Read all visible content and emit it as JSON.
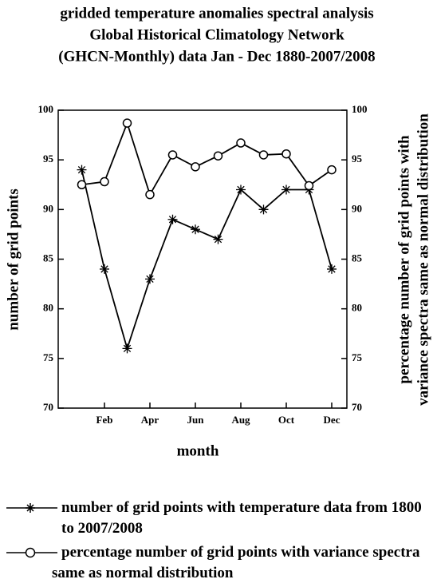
{
  "chart_data": {
    "type": "line",
    "title": [
      "gridded temperature anomalies spectral analysis",
      "Global Historical Climatology Network",
      "(GHCN-Monthly) data Jan - Dec 1880-2007/2008"
    ],
    "xlabel": "month",
    "ylabel": "number of grid points",
    "y2label": [
      "percentage number of grid points with",
      "variance spectra same as normal distribution"
    ],
    "categories": [
      null,
      "Feb",
      null,
      "Apr",
      null,
      "Jun",
      null,
      "Aug",
      null,
      "Oct",
      null,
      "Dec"
    ],
    "series": [
      {
        "name": "number of grid points with temperature data from 1800 to 2007/2008",
        "color": "#000000",
        "marker": "star",
        "values": [
          94,
          84,
          76,
          83,
          89,
          88,
          87,
          92,
          90,
          92,
          92,
          84
        ]
      },
      {
        "name": "percentage number of grid points with variance spectra same as normal distribution",
        "color": "#000000",
        "marker": "circle",
        "axis": "y2",
        "values": [
          92.5,
          92.8,
          98.7,
          91.5,
          95.5,
          94.3,
          95.4,
          96.7,
          95.5,
          95.6,
          92.4,
          94.0
        ]
      }
    ],
    "ylim": [
      70,
      100
    ],
    "yticks": [
      70,
      75,
      80,
      85,
      90,
      95,
      100
    ],
    "y2lim": [
      70,
      100
    ],
    "y2ticks": [
      70,
      75,
      80,
      85,
      90,
      95,
      100
    ],
    "grid": false
  }
}
